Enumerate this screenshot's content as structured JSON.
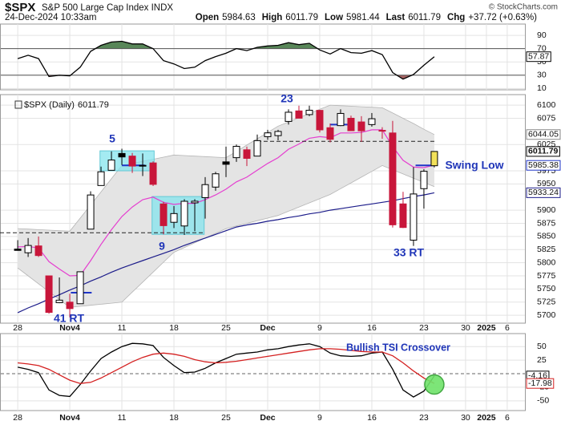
{
  "header": {
    "symbol": "$SPX",
    "name": "S&P 500 Large Cap Index INDX",
    "datetime": "24-Dec-2024 10:33am",
    "quote": [
      {
        "label": "Open",
        "value": "5984.63"
      },
      {
        "label": "High",
        "value": "6011.79"
      },
      {
        "label": "Low",
        "value": "5981.44"
      },
      {
        "label": "Last",
        "value": "6011.79"
      },
      {
        "label": "Chg",
        "value": "+37.72 (+0.63%)"
      }
    ],
    "credit": "© StockCharts.com"
  },
  "chart_data": [
    {
      "type": "line",
      "ylim": [
        8,
        107
      ],
      "yticks": [
        10,
        30,
        50,
        70,
        90
      ],
      "grid": true,
      "thresholds": {
        "upper": 70,
        "lower": 30
      },
      "fills": {
        "upper": "#4f7f4f",
        "lower": "#a05a5a"
      },
      "series": [
        {
          "color": "#000000",
          "values": [
            55,
            60,
            55,
            28,
            30,
            29,
            42,
            66,
            75,
            80,
            81,
            77,
            77,
            70,
            52,
            47,
            40,
            42,
            52,
            58,
            63,
            70,
            67,
            72,
            74,
            75,
            79,
            76,
            78,
            68,
            62,
            70,
            64,
            63,
            67,
            61,
            34,
            24,
            31,
            45,
            57.87
          ]
        }
      ]
    },
    {
      "type": "candlestick",
      "label": "$SPX (Daily)",
      "xlim": [
        -1.7,
        48.7
      ],
      "xticks": [
        {
          "value": 0,
          "label": "28"
        },
        {
          "value": 5,
          "label": "Nov4",
          "major": true
        },
        {
          "value": 10,
          "label": "11"
        },
        {
          "value": 15,
          "label": "18"
        },
        {
          "value": 20,
          "label": "25"
        },
        {
          "value": 24,
          "label": "Dec",
          "major": true
        },
        {
          "value": 29,
          "label": "9"
        },
        {
          "value": 34,
          "label": "16"
        },
        {
          "value": 39,
          "label": "23"
        },
        {
          "value": 43,
          "label": "30"
        },
        {
          "value": 45,
          "label": "2025",
          "major": true
        },
        {
          "value": 47,
          "label": "6"
        }
      ],
      "ylim": [
        5685,
        6120
      ],
      "yticks": [
        5700,
        5725,
        5750,
        5775,
        5800,
        5825,
        5850,
        5875,
        5900,
        5950,
        5975,
        6025,
        6075,
        6100
      ],
      "grid": true,
      "colors": {
        "up": "#000000",
        "down": "#c8163a",
        "last": "#f2e15a"
      },
      "open": [
        5826,
        5819,
        5832,
        5775,
        5724,
        5725,
        5722,
        5864,
        5947,
        5976,
        6008,
        6003,
        5985,
        5990,
        5912,
        5877,
        5870,
        5914,
        5924,
        5944,
        5992,
        6000,
        6015,
        6003,
        6040,
        6042,
        6069,
        6089,
        6082,
        6090,
        6057,
        6061,
        6075,
        6068,
        6063,
        6052,
        6047,
        5912,
        5843,
        5941,
        5984.63
      ],
      "high": [
        5843,
        5847,
        5850,
        5775,
        5772,
        5741,
        5783,
        5936,
        5983,
        6012,
        6017,
        6009,
        6008,
        5993,
        5916,
        5908,
        5921,
        5921,
        5963,
        5973,
        6021,
        6025,
        6021,
        6044,
        6053,
        6053,
        6092,
        6099,
        6099,
        6091,
        6065,
        6092,
        6080,
        6079,
        6085,
        6058,
        6070,
        5935,
        5982,
        5978,
        6011.79
      ],
      "low": [
        5823,
        5811,
        5811,
        5703,
        5723,
        5696,
        5722,
        5864,
        5947,
        5976,
        5986,
        5971,
        5965,
        5946,
        5854,
        5866,
        5853,
        5860,
        5884,
        5937,
        5963,
        5992,
        5984,
        6003,
        6034,
        6033,
        6063,
        6075,
        6079,
        6048,
        6029,
        6060,
        6051,
        6030,
        6059,
        6036,
        5867,
        5866,
        5832,
        5903,
        5981.44
      ],
      "close": [
        5823.5,
        5832.9,
        5813.7,
        5705.5,
        5728.8,
        5712.7,
        5782.8,
        5929,
        5973.1,
        5995.5,
        6001.4,
        5984,
        5985.4,
        5949.2,
        5870.6,
        5893.6,
        5917,
        5917.1,
        5948.7,
        5969.3,
        5987.4,
        6021.6,
        5998.7,
        6032.4,
        6047.2,
        6049.9,
        6086.5,
        6075.1,
        6090.3,
        6052.9,
        6034.9,
        6084.2,
        6051.3,
        6051.1,
        6074.1,
        6050.6,
        5872.2,
        5867.1,
        5930.9,
        5974.1,
        6011.79
      ],
      "band": {
        "color": "#e4e4e4",
        "line": "#b5b5b5",
        "upper": [
          5865,
          5864,
          5863,
          5862,
          5861,
          5860,
          5885,
          5910,
          5935,
          5960,
          5985,
          5989,
          5993,
          5997,
          6001,
          6005,
          6004,
          6003,
          6002,
          6001,
          6000,
          6012,
          6024,
          6036,
          6048,
          6060,
          6068,
          6076,
          6084,
          6092,
          6100,
          6099,
          6098,
          6097,
          6096,
          6095,
          6085,
          6075,
          6065,
          6054,
          6044.05
        ],
        "lower": [
          5790,
          5775,
          5760,
          5745,
          5730,
          5715,
          5717,
          5719,
          5721,
          5723,
          5725,
          5744,
          5763,
          5782,
          5801,
          5820,
          5829,
          5838,
          5847,
          5856,
          5865,
          5870,
          5875,
          5880,
          5885,
          5890,
          5898,
          5906,
          5914,
          5922,
          5930,
          5941,
          5952,
          5963,
          5974,
          5985,
          5977,
          5969,
          5961,
          5953,
          5945
        ]
      },
      "series": [
        {
          "color": "#e53fd0",
          "values": [
            5830,
            5831,
            5828,
            5802,
            5788,
            5775,
            5776,
            5804,
            5835,
            5863,
            5888,
            5906,
            5920,
            5925,
            5915,
            5911,
            5913,
            5913,
            5920,
            5929,
            5940,
            5954,
            5963,
            5976,
            5989,
            6000,
            6016,
            6026,
            6037,
            6040,
            6038,
            6047,
            6047,
            6048,
            6053,
            6053,
            6021,
            5995,
            5982,
            5981,
            5986
          ]
        },
        {
          "color": "#1c1c8a",
          "values": [
            5705,
            5714,
            5722,
            5731,
            5739,
            5748,
            5756,
            5765,
            5773,
            5782,
            5790,
            5797,
            5804,
            5811,
            5818,
            5825,
            5833,
            5840,
            5847,
            5854,
            5861,
            5868,
            5872,
            5875,
            5879,
            5882,
            5886,
            5889,
            5893,
            5896,
            5900,
            5903,
            5906,
            5909,
            5912,
            5915,
            5918,
            5922,
            5926,
            5929,
            5933.24
          ]
        }
      ],
      "levels": [
        {
          "value": 5857,
          "from": -1.7,
          "to": 17.9,
          "style": "dashed"
        },
        {
          "value": 6031,
          "from": 23,
          "to": 40,
          "style": "dashed"
        },
        {
          "value": 5743,
          "from": 5.1,
          "to": 7.1,
          "style": "solid"
        },
        {
          "value": 5985.38,
          "from": 10,
          "to": 12.2,
          "style": "solid"
        },
        {
          "value": 6063,
          "from": 30,
          "to": 32,
          "style": "solid"
        },
        {
          "value": 5985.38,
          "from": 38.2,
          "to": 40,
          "style": "solid"
        }
      ],
      "boxes": [
        {
          "x": [
            7.9,
            13.1
          ],
          "y": [
            5975,
            6013
          ]
        },
        {
          "x": [
            12.9,
            17.9
          ],
          "y": [
            5854,
            5926
          ]
        }
      ],
      "annotations": [
        "5",
        "9",
        "23",
        "41 RT",
        "33 RT",
        "Swing Low"
      ]
    },
    {
      "type": "line",
      "ylim": [
        -68,
        74
      ],
      "yticks": [
        -50,
        -25,
        25,
        50
      ],
      "grid": true,
      "zero_line": 0,
      "annotation": "Bullish TSI Crossover",
      "series": [
        {
          "color": "#000000",
          "values": [
            12,
            8,
            2,
            -30,
            -40,
            -42,
            -20,
            5,
            28,
            40,
            50,
            56,
            55,
            52,
            30,
            15,
            2,
            3,
            10,
            20,
            28,
            36,
            38,
            40,
            44,
            46,
            50,
            53,
            55,
            50,
            38,
            33,
            32,
            33,
            38,
            40,
            8,
            -30,
            -43,
            -32,
            -4.16
          ]
        },
        {
          "color": "#d42020",
          "values": [
            20,
            18,
            15,
            8,
            -2,
            -12,
            -18,
            -16,
            -8,
            2,
            12,
            22,
            30,
            36,
            38,
            36,
            32,
            26,
            22,
            20,
            21,
            23,
            26,
            29,
            32,
            35,
            38,
            41,
            44,
            46,
            46,
            45,
            43,
            41,
            40,
            40,
            33,
            20,
            5,
            -8,
            -17.98
          ]
        }
      ]
    }
  ]
}
